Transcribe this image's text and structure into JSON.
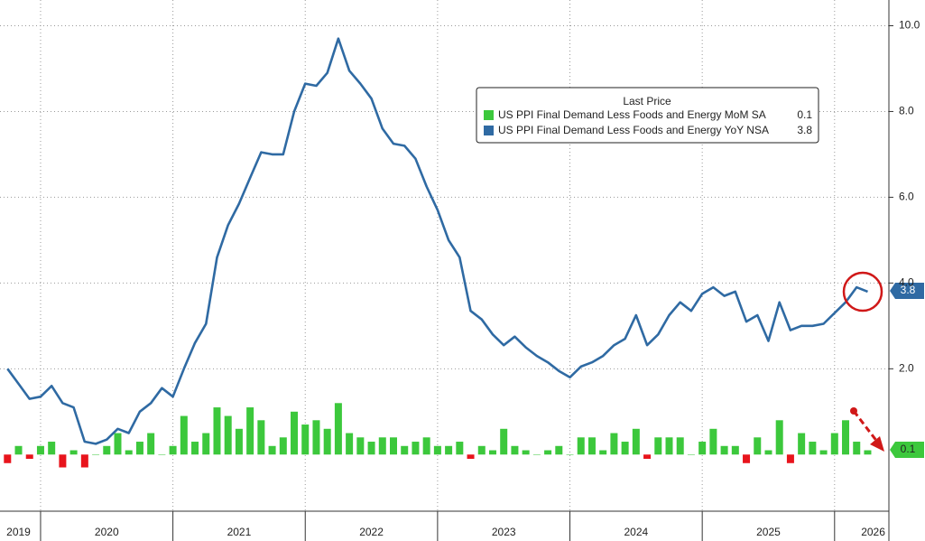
{
  "chart_data": {
    "type": "bar-line",
    "legend_title": "Last Price",
    "categories": [
      null,
      null,
      null,
      null,
      null,
      null,
      null,
      null,
      null,
      null,
      null,
      null,
      null,
      null,
      null,
      null,
      null,
      null,
      null,
      null,
      null,
      null,
      null,
      null,
      null,
      null,
      null,
      null,
      null,
      null,
      null,
      null,
      null,
      null,
      null,
      null,
      null,
      null,
      null,
      null,
      null,
      null,
      null,
      null,
      null,
      null,
      null,
      null,
      null,
      null,
      null,
      null,
      null,
      null,
      null,
      null,
      null,
      null,
      null,
      null,
      null,
      null,
      null,
      null,
      null,
      null,
      null,
      null,
      null,
      null,
      null,
      null,
      null,
      null,
      null,
      null,
      null,
      null,
      null
    ],
    "series": [
      {
        "name": "US PPI Final Demand Less Foods and Energy MoM SA",
        "type": "bar",
        "color": "#3cc83c",
        "negative_color": "#e8141c",
        "values": [
          -0.2,
          0.2,
          -0.1,
          0.2,
          0.3,
          -0.3,
          0.1,
          -0.3,
          0.0,
          0.2,
          0.5,
          0.1,
          0.3,
          0.5,
          0.0,
          0.2,
          0.9,
          0.3,
          0.5,
          1.1,
          0.9,
          0.6,
          1.1,
          0.8,
          0.2,
          0.4,
          1.0,
          0.7,
          0.8,
          0.6,
          1.2,
          0.5,
          0.4,
          0.3,
          0.4,
          0.4,
          0.2,
          0.3,
          0.4,
          0.2,
          0.2,
          0.3,
          -0.1,
          0.2,
          0.1,
          0.6,
          0.2,
          0.1,
          0.0,
          0.1,
          0.2,
          0.0,
          0.4,
          0.4,
          0.1,
          0.5,
          0.3,
          0.6,
          -0.1,
          0.4,
          0.4,
          0.4,
          0.0,
          0.3,
          0.6,
          0.2,
          0.2,
          -0.2,
          0.4,
          0.1,
          0.8,
          -0.2,
          0.5,
          0.3,
          0.1,
          0.5,
          0.8,
          0.3,
          0.1
        ]
      },
      {
        "name": "US PPI Final Demand Less Foods and Energy YoY NSA",
        "type": "line",
        "color": "#2f6aa3",
        "values": [
          2.0,
          1.65,
          1.3,
          1.35,
          1.6,
          1.2,
          1.1,
          0.3,
          0.25,
          0.35,
          0.6,
          0.5,
          1.0,
          1.2,
          1.55,
          1.35,
          2.0,
          2.6,
          3.05,
          4.6,
          5.35,
          5.85,
          6.45,
          7.05,
          7.0,
          7.0,
          8.0,
          8.65,
          8.6,
          8.9,
          9.7,
          8.95,
          8.65,
          8.3,
          7.6,
          7.25,
          7.2,
          6.9,
          6.25,
          5.7,
          5.0,
          4.6,
          3.35,
          3.15,
          2.8,
          2.55,
          2.75,
          2.5,
          2.3,
          2.15,
          1.95,
          1.8,
          2.05,
          2.15,
          2.3,
          2.55,
          2.7,
          3.25,
          2.55,
          2.8,
          3.25,
          3.55,
          3.35,
          3.75,
          3.9,
          3.7,
          3.8,
          3.1,
          3.25,
          2.65,
          3.55,
          2.9,
          3.0,
          3.0,
          3.05,
          3.3,
          3.55,
          3.9,
          3.8
        ]
      }
    ],
    "ylim": [
      -1.3,
      10.6
    ],
    "yticks": [
      {
        "value": 2,
        "label": "2.0"
      },
      {
        "value": 4,
        "label": "4.0"
      },
      {
        "value": 6,
        "label": "6.0"
      },
      {
        "value": 8,
        "label": "8.0"
      },
      {
        "value": 10,
        "label": "10.0"
      }
    ],
    "xticks": [
      {
        "value": 1,
        "label": "2019"
      },
      {
        "value": 9,
        "label": "2020"
      },
      {
        "value": 21,
        "label": "2021"
      },
      {
        "value": 33,
        "label": "2022"
      },
      {
        "value": 45,
        "label": "2023"
      },
      {
        "value": 57,
        "label": "2024"
      },
      {
        "value": 69,
        "label": "2025"
      },
      {
        "value": 78.5,
        "label": "2026"
      }
    ],
    "xgrid": [
      3,
      15,
      27,
      39,
      51,
      63,
      75
    ],
    "grid": true
  }
}
